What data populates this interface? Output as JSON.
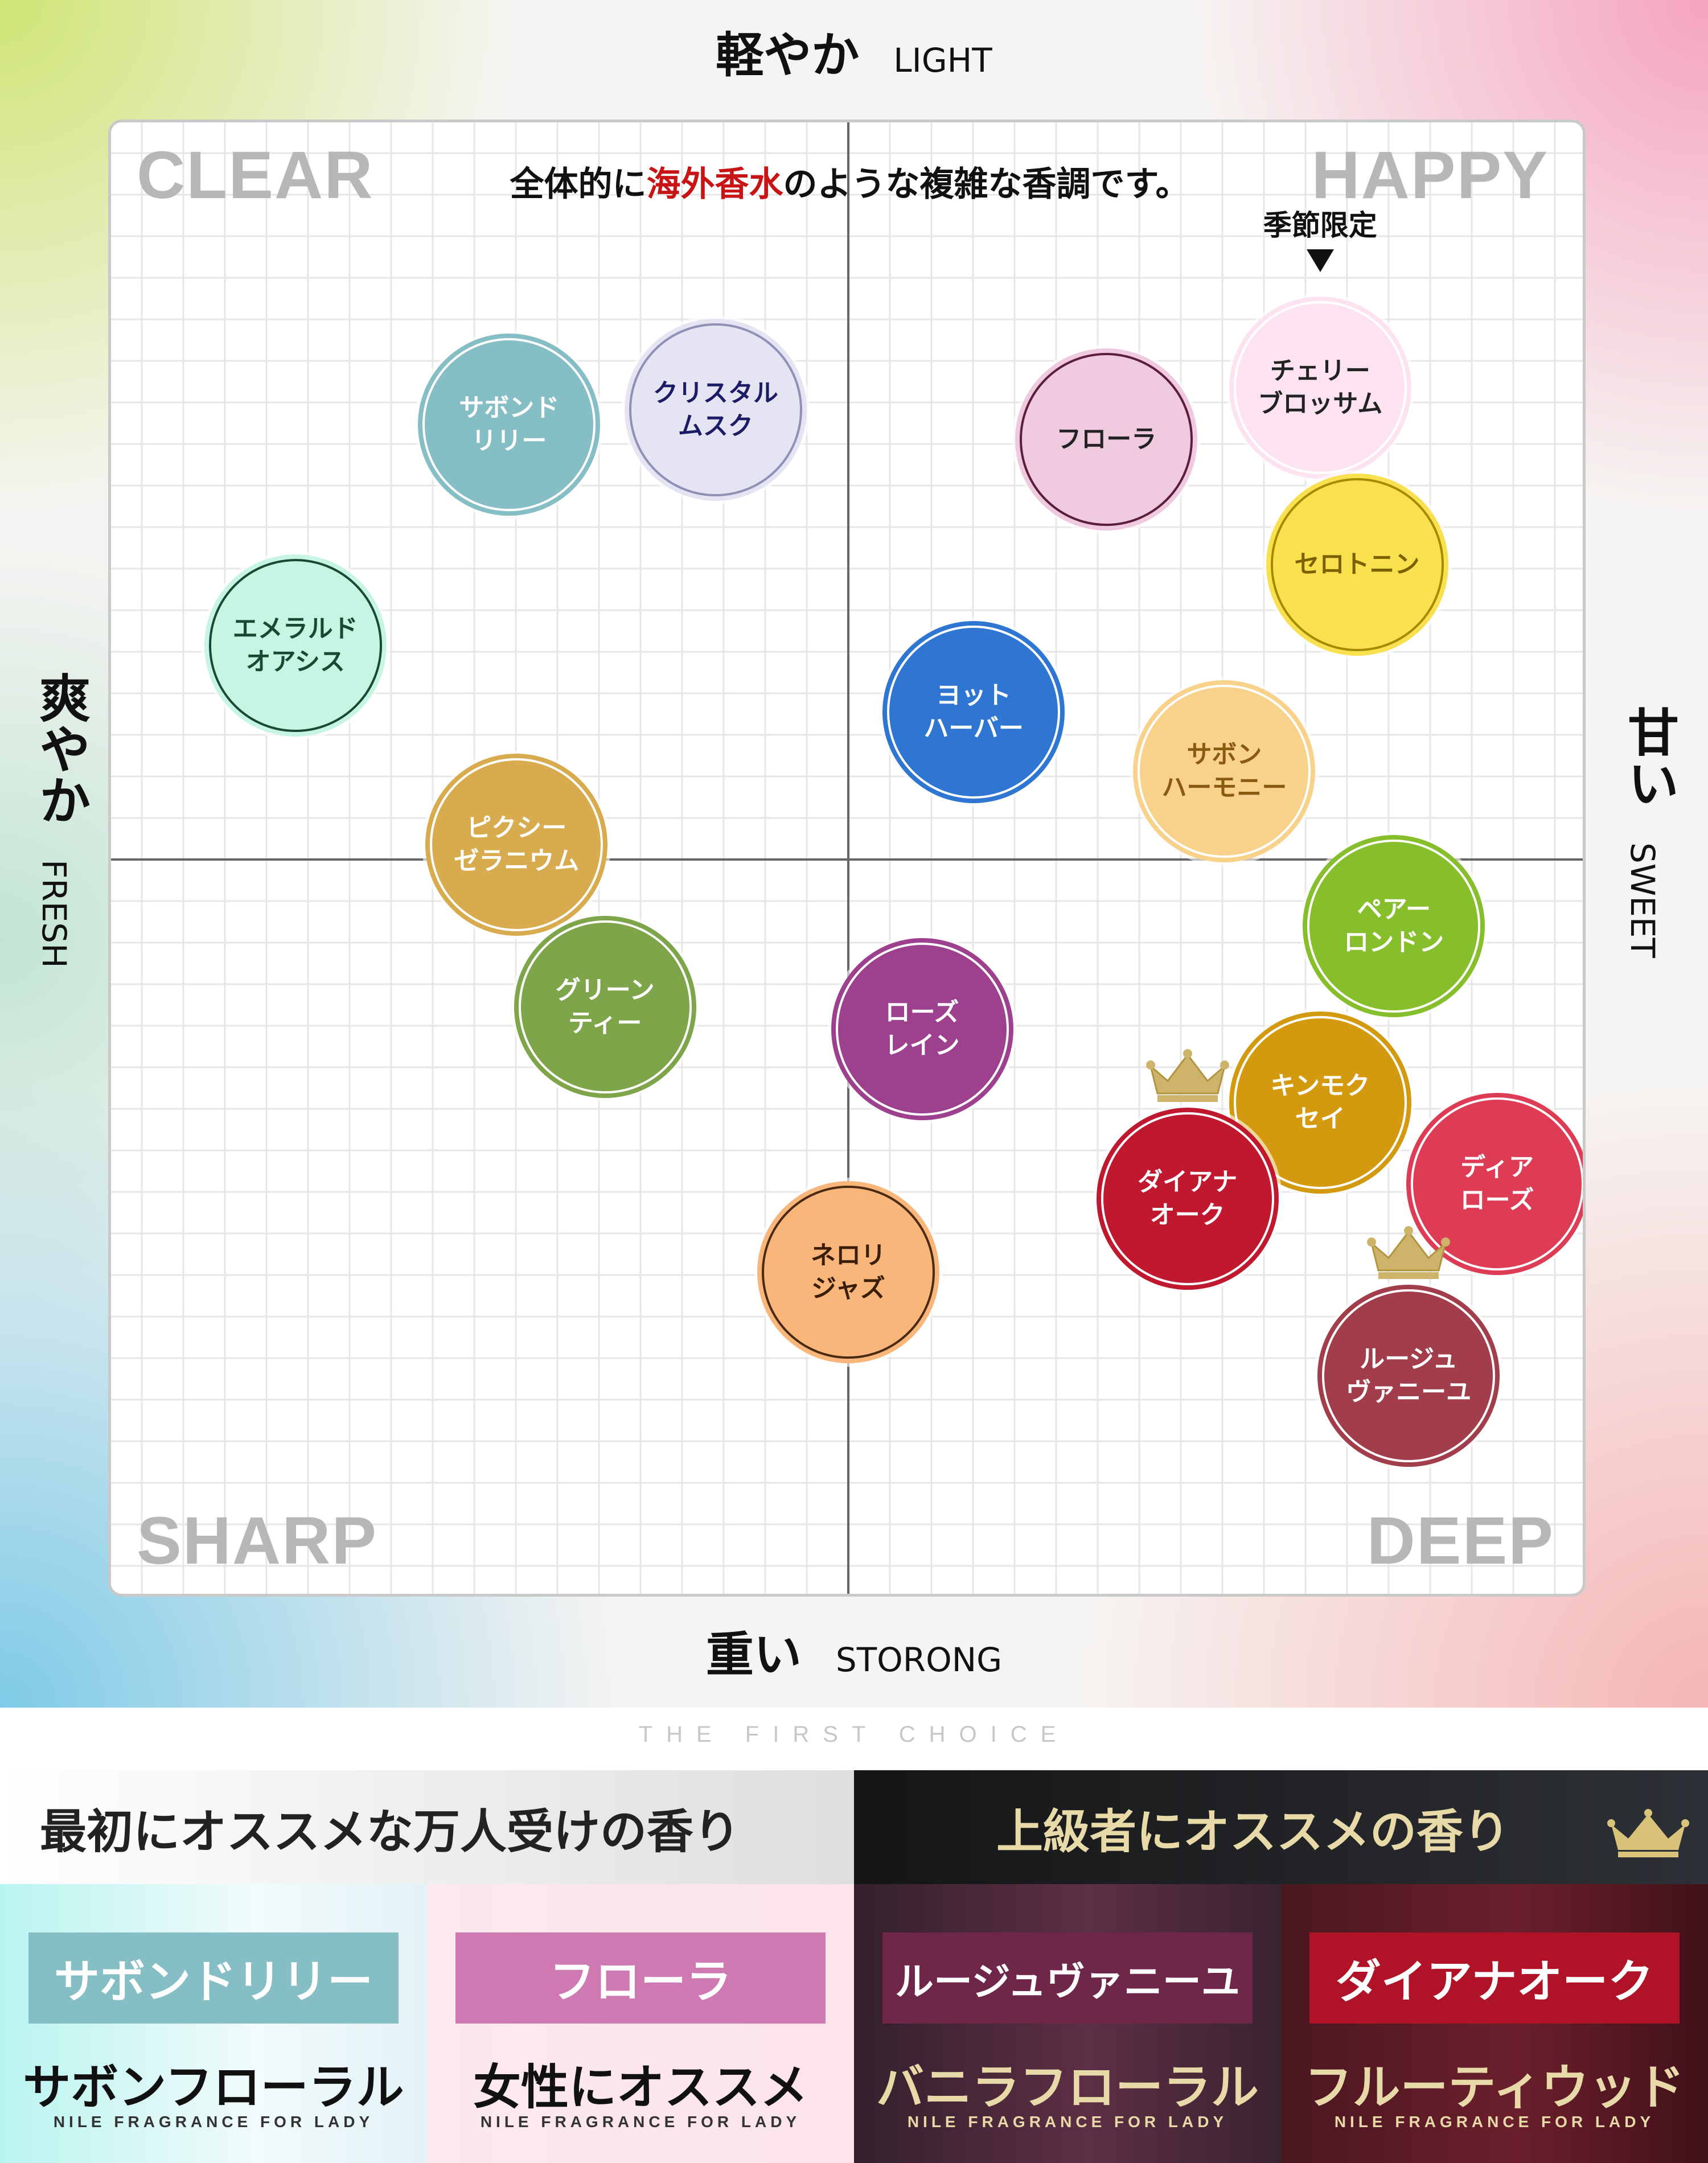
{
  "axes": {
    "top": {
      "jp": "軽やか",
      "en": "LIGHT"
    },
    "bottom": {
      "jp": "重い",
      "en": "STORONG"
    },
    "left": {
      "jp": "爽やか",
      "en": "FRESH"
    },
    "right": {
      "jp": "甘い",
      "en": "SWEET"
    }
  },
  "quadrants": {
    "top_left": "CLEAR",
    "top_right": "HAPPY",
    "bottom_left": "SHARP",
    "bottom_right": "DEEP"
  },
  "plot_note": {
    "before": "全体的に",
    "highlight": "海外香水",
    "after": "のような複雑な香調です。"
  },
  "seasonal_note": "季節限定",
  "chart_data": {
    "type": "scatter",
    "xlim": [
      -1,
      1
    ],
    "ylim": [
      -1,
      1
    ],
    "xlabel": "爽やか FRESH ← → 甘い SWEET",
    "ylabel": "重い STORONG ↓ ↑ 軽やか LIGHT",
    "grid": true,
    "points": [
      {
        "label": "サボンド\nリリー",
        "x": -0.46,
        "y": 0.59,
        "fill": "#86bec6",
        "ring": "#ffffff",
        "text": "#ffffff"
      },
      {
        "label": "クリスタル\nムスク",
        "x": -0.18,
        "y": 0.61,
        "fill": "#e4e4f2",
        "ring": "#8f8fb8",
        "text": "#1b1b66"
      },
      {
        "label": "フローラ",
        "x": 0.35,
        "y": 0.57,
        "fill": "#efc9dd",
        "ring": "#5b1e3a",
        "text": "#222222"
      },
      {
        "label": "チェリー\nブロッサム",
        "x": 0.64,
        "y": 0.64,
        "fill": "#fde3ef",
        "ring": "#ffffff",
        "text": "#222222",
        "note": true
      },
      {
        "label": "セロトニン",
        "x": 0.69,
        "y": 0.4,
        "fill": "#f9e04f",
        "ring": "#a58a00",
        "text": "#7a6200"
      },
      {
        "label": "エメラルド\nオアシス",
        "x": -0.75,
        "y": 0.29,
        "fill": "#c7f5e3",
        "ring": "#174a33",
        "text": "#174a33"
      },
      {
        "label": "ヨット\nハーバー",
        "x": 0.17,
        "y": 0.2,
        "fill": "#2f76d2",
        "ring": "#ffffff",
        "text": "#ffffff"
      },
      {
        "label": "サボン\nハーモニー",
        "x": 0.51,
        "y": 0.12,
        "fill": "#f8d28b",
        "ring": "#ffffff",
        "text": "#8a5a10"
      },
      {
        "label": "ピクシー\nゼラニウム",
        "x": -0.45,
        "y": 0.02,
        "fill": "#d8ac4e",
        "ring": "#ffffff",
        "text": "#ffffff"
      },
      {
        "label": "ペアー\nロンドン",
        "x": 0.74,
        "y": -0.09,
        "fill": "#86bf2b",
        "ring": "#ffffff",
        "text": "#ffffff"
      },
      {
        "label": "グリーン\nティー",
        "x": -0.33,
        "y": -0.2,
        "fill": "#7ea54a",
        "ring": "#ffffff",
        "text": "#ffffff"
      },
      {
        "label": "ローズ\nレイン",
        "x": 0.1,
        "y": -0.23,
        "fill": "#9d418f",
        "ring": "#ffffff",
        "text": "#ffffff"
      },
      {
        "label": "キンモク\nセイ",
        "x": 0.64,
        "y": -0.33,
        "fill": "#d49a0f",
        "ring": "#ffffff",
        "text": "#ffffff"
      },
      {
        "label": "ダイアナ\nオーク",
        "x": 0.46,
        "y": -0.46,
        "fill": "#c0182f",
        "ring": "#ffffff",
        "text": "#ffffff",
        "crown": true
      },
      {
        "label": "ディア\nローズ",
        "x": 0.88,
        "y": -0.44,
        "fill": "#de3b55",
        "ring": "#ffffff",
        "text": "#ffffff"
      },
      {
        "label": "ネロリ\nジャズ",
        "x": 0.0,
        "y": -0.56,
        "fill": "#f9b67a",
        "ring": "#4a2a12",
        "text": "#3a1e08"
      },
      {
        "label": "ルージュ\nヴァニーユ",
        "x": 0.76,
        "y": -0.7,
        "fill": "#a23e4b",
        "ring": "#ffffff",
        "text": "#ffffff",
        "crown": true
      }
    ]
  },
  "footer": {
    "subtitle": "THE FIRST CHOICE",
    "left_heading": "最初にオススメな万人受けの香り",
    "right_heading": "上級者にオススメの香り",
    "cards": [
      {
        "name": "サボンドリリー",
        "name_bg": "#86bec6",
        "kind": "サボンフローラル",
        "tag": "NILE FRAGRANCE FOR LADY"
      },
      {
        "name": "フローラ",
        "name_bg": "#cf79b2",
        "kind": "女性にオススメ",
        "tag": "NILE FRAGRANCE FOR LADY"
      },
      {
        "name": "ルージュヴァニーユ",
        "name_bg": "#6e2748",
        "kind": "バニラフローラル",
        "tag": "NILE FRAGRANCE FOR LADY"
      },
      {
        "name": "ダイアナオーク",
        "name_bg": "#b01327",
        "kind": "フルーティウッド",
        "tag": "NILE FRAGRANCE FOR LADY"
      }
    ]
  }
}
